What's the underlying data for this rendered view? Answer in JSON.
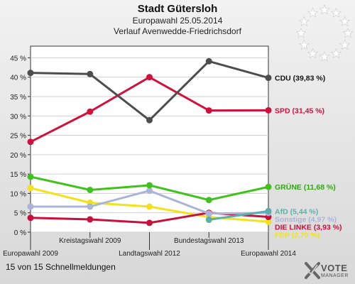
{
  "header": {
    "title": "Stadt Gütersloh",
    "subtitle1": "Europawahl 25.05.2014",
    "subtitle2": "Verlauf Avenwedde-Friedrichsdorf"
  },
  "footer": {
    "note": "15 von 15 Schnellmeldungen"
  },
  "logo": {
    "line1": "VOTE",
    "line2": "MANAGER",
    "icon": "x-check-logo-icon"
  },
  "emblem": {
    "icon": "eu-stars-icon",
    "color": "#ffffff"
  },
  "chart_data": {
    "type": "line",
    "categories": [
      "Europawahl 2009",
      "Kreistagswahl 2009",
      "Landtagswahl 2012",
      "Bundestagswahl 2013",
      "Europawahl 2014"
    ],
    "y_tick_labels": [
      "0 %",
      "5 %",
      "10 %",
      "15 %",
      "20 %",
      "25 %",
      "30 %",
      "35 %",
      "40 %",
      "45 %"
    ],
    "ylim": [
      0,
      48
    ],
    "grid": true,
    "series": [
      {
        "name": "CDU",
        "color": "#4d4d4d",
        "values": [
          41.1,
          40.8,
          28.9,
          44.1,
          39.83
        ],
        "label": "CDU (39,83 %)",
        "label_color": "#111111"
      },
      {
        "name": "SPD",
        "color": "#d2103c",
        "values": [
          23.3,
          31.1,
          40.0,
          31.4,
          31.45
        ],
        "label": "SPD (31,45 %)",
        "label_color": "#d2103c"
      },
      {
        "name": "GRÜNE",
        "color": "#3fc21a",
        "values": [
          14.3,
          10.9,
          12.1,
          8.3,
          11.68
        ],
        "label": "GRÜNE (11,68 %)",
        "label_color": "#2ea80f"
      },
      {
        "name": "AfD",
        "color": "#5ab0a8",
        "values": [
          null,
          null,
          null,
          3.2,
          5.44
        ],
        "label": "AfD (5,44 %)",
        "label_color": "#5ab0a8"
      },
      {
        "name": "Sonstige",
        "color": "#aab4d8",
        "values": [
          6.6,
          6.6,
          10.7,
          4.8,
          4.97
        ],
        "label": "Sonstige (4,97 %)",
        "label_color": "#aab4d8"
      },
      {
        "name": "DIE LINKE",
        "color": "#c8103c",
        "values": [
          3.7,
          3.3,
          2.4,
          5.0,
          3.93
        ],
        "label": "DIE LINKE (3,93 %)",
        "label_color": "#c8103c"
      },
      {
        "name": "FDP",
        "color": "#f2e21e",
        "values": [
          11.4,
          7.6,
          6.6,
          3.9,
          2.7
        ],
        "label": "FDP (2,70 %)",
        "label_color": "#f2e21e"
      }
    ]
  }
}
